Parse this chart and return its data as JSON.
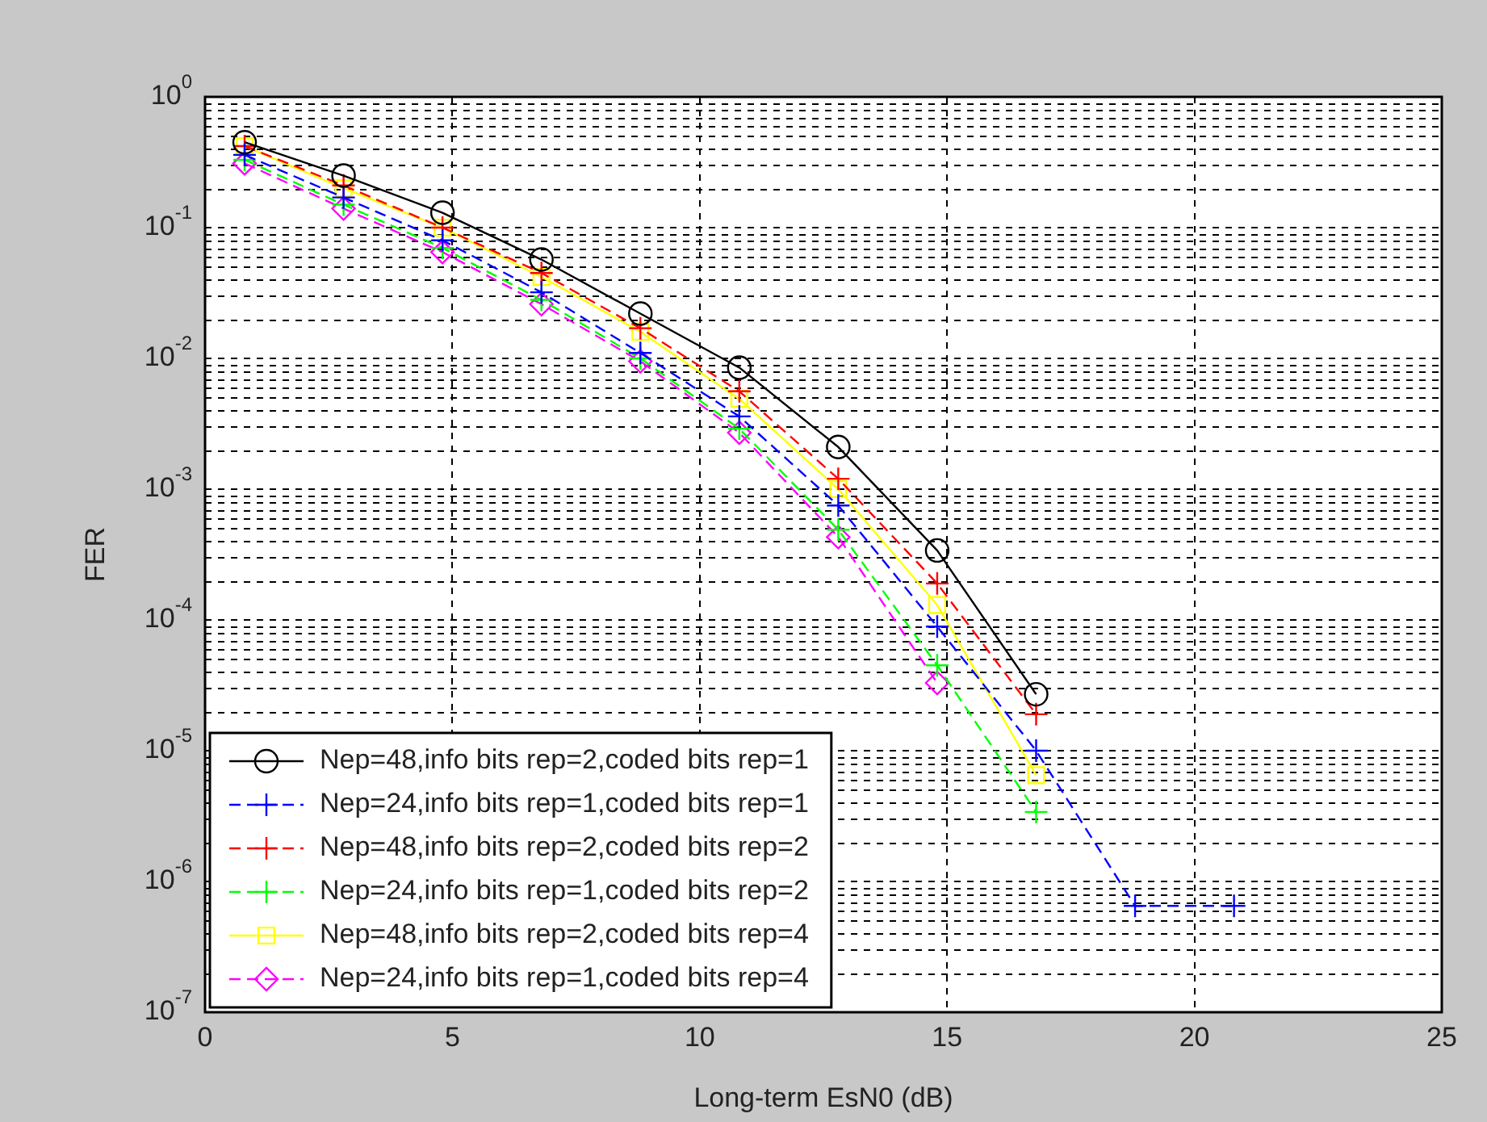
{
  "chart_data": {
    "type": "line",
    "xlabel": "Long-term EsN0 (dB)",
    "ylabel": "FER",
    "x": [
      0.8,
      2.8,
      4.8,
      6.8,
      8.8,
      10.8,
      12.8,
      14.8,
      16.8
    ],
    "series": [
      {
        "name": "Nep=48,info bits rep=2,coded bits rep=1",
        "color": "#000000",
        "marker": "circle",
        "line_style": "solid",
        "values": [
          0.45,
          0.25,
          0.13,
          0.057,
          0.022,
          0.0085,
          0.0021,
          0.00034,
          2.7e-05
        ]
      },
      {
        "name": "Nep=24,info bits rep=1,coded bits rep=1",
        "color": "#0000ff",
        "marker": "cross",
        "line_style": "dashed",
        "x": [
          0.8,
          2.8,
          4.8,
          6.8,
          8.8,
          10.8,
          12.8,
          14.8,
          16.8,
          18.8,
          20.8
        ],
        "values": [
          0.36,
          0.17,
          0.08,
          0.032,
          0.011,
          0.0036,
          0.00075,
          8.9e-05,
          1e-05,
          6.5e-07,
          6.5e-07
        ]
      },
      {
        "name": "Nep=48,info bits rep=2,coded bits rep=2",
        "color": "#ff0000",
        "marker": "cross",
        "line_style": "dashed",
        "values": [
          0.42,
          0.21,
          0.1,
          0.045,
          0.017,
          0.0056,
          0.0012,
          0.00019,
          1.9e-05
        ]
      },
      {
        "name": "Nep=24,info bits rep=1,coded bits rep=2",
        "color": "#00ff00",
        "marker": "cross",
        "line_style": "dashed",
        "values": [
          0.33,
          0.15,
          0.07,
          0.028,
          0.01,
          0.0029,
          0.00049,
          4.5e-05,
          3.4e-06
        ]
      },
      {
        "name": "Nep=48,info bits rep=2,coded bits rep=4",
        "color": "#ffff00",
        "marker": "square",
        "line_style": "solid",
        "values": [
          0.42,
          0.2,
          0.1,
          0.042,
          0.016,
          0.0049,
          0.001,
          0.00013,
          6.5e-06
        ]
      },
      {
        "name": "Nep=24,info bits rep=1,coded bits rep=4",
        "color": "#ff00ff",
        "marker": "diamond",
        "line_style": "dashed",
        "x": [
          0.8,
          2.8,
          4.8,
          6.8,
          8.8,
          10.8,
          12.8,
          14.8
        ],
        "values": [
          0.31,
          0.14,
          0.065,
          0.026,
          0.0095,
          0.0027,
          0.00043,
          3.3e-05
        ]
      }
    ],
    "xlim": [
      0,
      25
    ],
    "xticks": [
      0,
      5,
      10,
      15,
      20,
      25
    ],
    "ylim": [
      1e-07,
      1
    ],
    "log": "y",
    "yticks": [
      {
        "value": 1e-07,
        "label": "10$^{-7}$"
      },
      {
        "value": 1e-06,
        "label": "10$^{-6}$"
      },
      {
        "value": 1e-05,
        "label": "10$^{-5}$"
      },
      {
        "value": 0.0001,
        "label": "10$^{-4}$"
      },
      {
        "value": 0.001,
        "label": "10$^{-3}$"
      },
      {
        "value": 0.01,
        "label": "10$^{-2}$"
      },
      {
        "value": 0.1,
        "label": "10$^{-1}$"
      },
      {
        "value": 1,
        "label": "10$^{0}$"
      }
    ],
    "grid": true,
    "legend": "bottom left"
  }
}
